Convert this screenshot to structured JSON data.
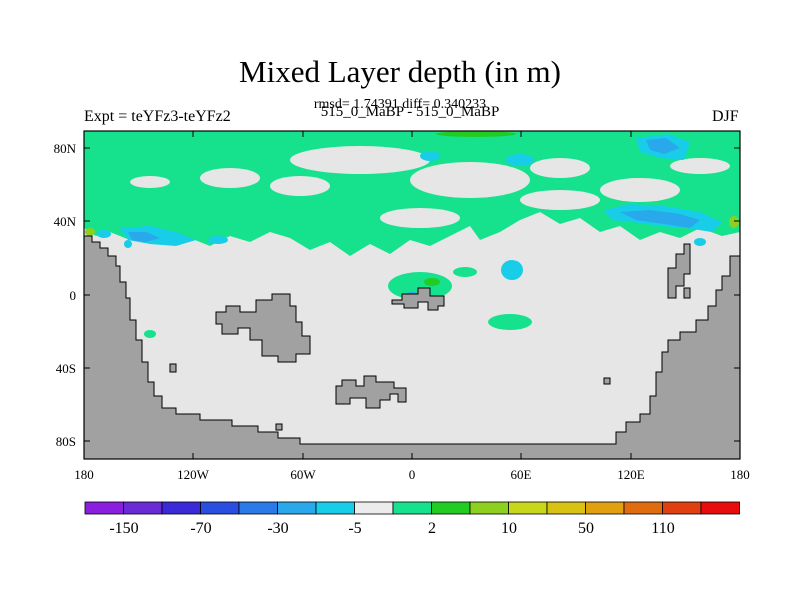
{
  "title": "Mixed Layer depth (in m)",
  "subtitle": "rmsd= 1.74391 diff= 0.340233",
  "left_label": "Expt = teYFz3-teYFz2",
  "center_label": "515_0_MaBP - 515_0_MaBP",
  "right_label": "DJF",
  "lat_ticks": [
    "80N",
    "40N",
    "0",
    "40S",
    "80S"
  ],
  "lon_ticks": [
    "180",
    "120W",
    "60W",
    "0",
    "60E",
    "120E",
    "180"
  ],
  "colorbar": {
    "labels": [
      "-150",
      "-70",
      "-30",
      "-5",
      "2",
      "10",
      "50",
      "110"
    ],
    "colors": [
      "#8a1fe0",
      "#6a2ad6",
      "#3a2ad8",
      "#2a4ee0",
      "#2a7ae8",
      "#2aa8ec",
      "#18cde8",
      "#ececec",
      "#16e28e",
      "#22cc22",
      "#8ed020",
      "#c8d61c",
      "#d8c214",
      "#e0a010",
      "#e06c10",
      "#e04010",
      "#e80c0c"
    ]
  },
  "map": {
    "land_color": "#a1a1a1",
    "ocean_color": "#e6e6e6",
    "positive_color": "#16e28e",
    "negative_color": "#18cde8",
    "strong_negative_color": "#2aa8ec",
    "strong_positive_color": "#22cc22"
  }
}
